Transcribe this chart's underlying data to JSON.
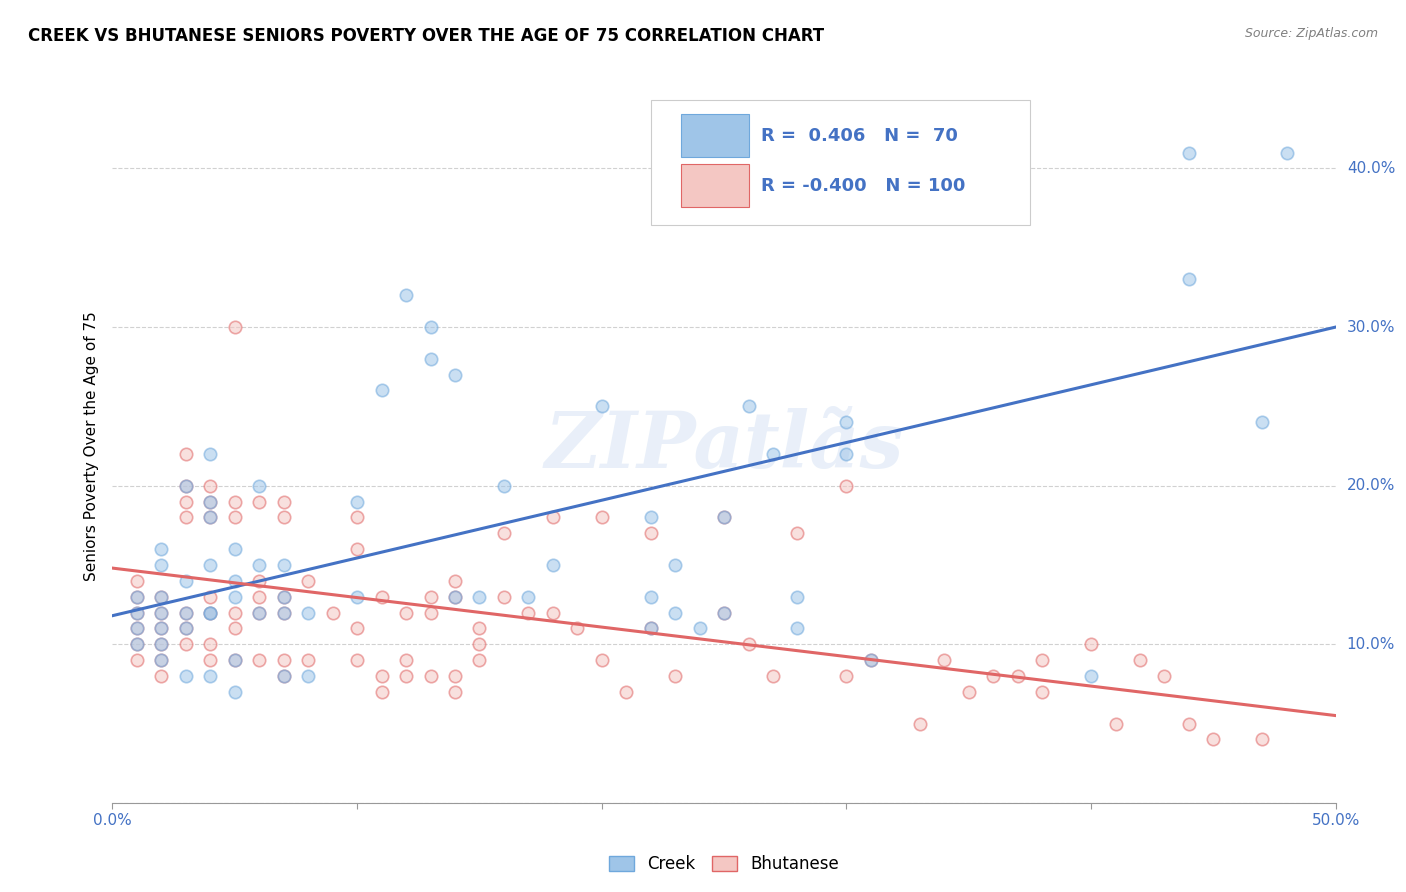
{
  "title": "CREEK VS BHUTANESE SENIORS POVERTY OVER THE AGE OF 75 CORRELATION CHART",
  "source": "Source: ZipAtlas.com",
  "ylabel": "Seniors Poverty Over the Age of 75",
  "xlim": [
    0.0,
    0.5
  ],
  "ylim": [
    0.0,
    0.45
  ],
  "xticks": [
    0.0,
    0.1,
    0.2,
    0.3,
    0.4,
    0.5
  ],
  "xticklabels": [
    "0.0%",
    "",
    "",
    "",
    "",
    "50.0%"
  ],
  "yticks": [
    0.0,
    0.1,
    0.2,
    0.3,
    0.4
  ],
  "yticklabels_right": [
    "",
    "10.0%",
    "20.0%",
    "30.0%",
    "40.0%"
  ],
  "creek_color": "#9fc5e8",
  "creek_edge_color": "#6fa8dc",
  "bhutanese_color": "#f4c7c3",
  "bhutanese_edge_color": "#e06666",
  "creek_line_color": "#4472c4",
  "bhutanese_line_color": "#e06666",
  "creek_R": 0.406,
  "creek_N": 70,
  "bhutanese_R": -0.4,
  "bhutanese_N": 100,
  "legend_text_color": "#4472c4",
  "watermark": "ZIPatlãs",
  "creek_scatter": [
    [
      0.01,
      0.12
    ],
    [
      0.01,
      0.13
    ],
    [
      0.01,
      0.11
    ],
    [
      0.01,
      0.1
    ],
    [
      0.02,
      0.13
    ],
    [
      0.02,
      0.12
    ],
    [
      0.02,
      0.11
    ],
    [
      0.02,
      0.1
    ],
    [
      0.02,
      0.09
    ],
    [
      0.02,
      0.15
    ],
    [
      0.02,
      0.16
    ],
    [
      0.03,
      0.14
    ],
    [
      0.03,
      0.12
    ],
    [
      0.03,
      0.08
    ],
    [
      0.03,
      0.11
    ],
    [
      0.03,
      0.2
    ],
    [
      0.04,
      0.22
    ],
    [
      0.04,
      0.19
    ],
    [
      0.04,
      0.12
    ],
    [
      0.04,
      0.18
    ],
    [
      0.04,
      0.15
    ],
    [
      0.04,
      0.12
    ],
    [
      0.04,
      0.08
    ],
    [
      0.05,
      0.14
    ],
    [
      0.05,
      0.16
    ],
    [
      0.05,
      0.13
    ],
    [
      0.05,
      0.09
    ],
    [
      0.05,
      0.07
    ],
    [
      0.06,
      0.2
    ],
    [
      0.06,
      0.15
    ],
    [
      0.06,
      0.12
    ],
    [
      0.07,
      0.12
    ],
    [
      0.07,
      0.15
    ],
    [
      0.07,
      0.13
    ],
    [
      0.07,
      0.08
    ],
    [
      0.08,
      0.12
    ],
    [
      0.08,
      0.08
    ],
    [
      0.1,
      0.19
    ],
    [
      0.1,
      0.13
    ],
    [
      0.11,
      0.26
    ],
    [
      0.12,
      0.32
    ],
    [
      0.13,
      0.3
    ],
    [
      0.13,
      0.28
    ],
    [
      0.14,
      0.27
    ],
    [
      0.14,
      0.13
    ],
    [
      0.15,
      0.13
    ],
    [
      0.16,
      0.2
    ],
    [
      0.17,
      0.13
    ],
    [
      0.18,
      0.15
    ],
    [
      0.2,
      0.25
    ],
    [
      0.22,
      0.18
    ],
    [
      0.22,
      0.13
    ],
    [
      0.22,
      0.11
    ],
    [
      0.23,
      0.15
    ],
    [
      0.23,
      0.12
    ],
    [
      0.24,
      0.11
    ],
    [
      0.25,
      0.18
    ],
    [
      0.25,
      0.12
    ],
    [
      0.26,
      0.25
    ],
    [
      0.27,
      0.22
    ],
    [
      0.28,
      0.13
    ],
    [
      0.28,
      0.11
    ],
    [
      0.3,
      0.24
    ],
    [
      0.3,
      0.22
    ],
    [
      0.31,
      0.09
    ],
    [
      0.4,
      0.08
    ],
    [
      0.44,
      0.41
    ],
    [
      0.44,
      0.33
    ],
    [
      0.47,
      0.24
    ],
    [
      0.48,
      0.41
    ]
  ],
  "bhutanese_scatter": [
    [
      0.01,
      0.14
    ],
    [
      0.01,
      0.13
    ],
    [
      0.01,
      0.12
    ],
    [
      0.01,
      0.11
    ],
    [
      0.01,
      0.1
    ],
    [
      0.01,
      0.09
    ],
    [
      0.02,
      0.13
    ],
    [
      0.02,
      0.12
    ],
    [
      0.02,
      0.11
    ],
    [
      0.02,
      0.1
    ],
    [
      0.02,
      0.09
    ],
    [
      0.02,
      0.08
    ],
    [
      0.03,
      0.22
    ],
    [
      0.03,
      0.2
    ],
    [
      0.03,
      0.19
    ],
    [
      0.03,
      0.18
    ],
    [
      0.03,
      0.12
    ],
    [
      0.03,
      0.11
    ],
    [
      0.03,
      0.1
    ],
    [
      0.04,
      0.2
    ],
    [
      0.04,
      0.19
    ],
    [
      0.04,
      0.18
    ],
    [
      0.04,
      0.13
    ],
    [
      0.04,
      0.12
    ],
    [
      0.04,
      0.1
    ],
    [
      0.04,
      0.09
    ],
    [
      0.05,
      0.3
    ],
    [
      0.05,
      0.19
    ],
    [
      0.05,
      0.18
    ],
    [
      0.05,
      0.12
    ],
    [
      0.05,
      0.11
    ],
    [
      0.05,
      0.09
    ],
    [
      0.06,
      0.19
    ],
    [
      0.06,
      0.14
    ],
    [
      0.06,
      0.13
    ],
    [
      0.06,
      0.12
    ],
    [
      0.06,
      0.09
    ],
    [
      0.07,
      0.19
    ],
    [
      0.07,
      0.18
    ],
    [
      0.07,
      0.13
    ],
    [
      0.07,
      0.12
    ],
    [
      0.07,
      0.09
    ],
    [
      0.07,
      0.08
    ],
    [
      0.08,
      0.14
    ],
    [
      0.08,
      0.09
    ],
    [
      0.09,
      0.12
    ],
    [
      0.1,
      0.18
    ],
    [
      0.1,
      0.16
    ],
    [
      0.1,
      0.11
    ],
    [
      0.1,
      0.09
    ],
    [
      0.11,
      0.13
    ],
    [
      0.11,
      0.08
    ],
    [
      0.11,
      0.07
    ],
    [
      0.12,
      0.12
    ],
    [
      0.12,
      0.09
    ],
    [
      0.12,
      0.08
    ],
    [
      0.13,
      0.13
    ],
    [
      0.13,
      0.12
    ],
    [
      0.13,
      0.08
    ],
    [
      0.14,
      0.14
    ],
    [
      0.14,
      0.13
    ],
    [
      0.14,
      0.08
    ],
    [
      0.14,
      0.07
    ],
    [
      0.15,
      0.11
    ],
    [
      0.15,
      0.1
    ],
    [
      0.15,
      0.09
    ],
    [
      0.16,
      0.17
    ],
    [
      0.16,
      0.13
    ],
    [
      0.17,
      0.12
    ],
    [
      0.18,
      0.18
    ],
    [
      0.18,
      0.12
    ],
    [
      0.19,
      0.11
    ],
    [
      0.2,
      0.18
    ],
    [
      0.2,
      0.09
    ],
    [
      0.21,
      0.07
    ],
    [
      0.22,
      0.17
    ],
    [
      0.22,
      0.11
    ],
    [
      0.23,
      0.08
    ],
    [
      0.25,
      0.18
    ],
    [
      0.25,
      0.12
    ],
    [
      0.26,
      0.1
    ],
    [
      0.27,
      0.08
    ],
    [
      0.28,
      0.17
    ],
    [
      0.3,
      0.2
    ],
    [
      0.3,
      0.08
    ],
    [
      0.31,
      0.09
    ],
    [
      0.33,
      0.05
    ],
    [
      0.34,
      0.09
    ],
    [
      0.35,
      0.07
    ],
    [
      0.36,
      0.08
    ],
    [
      0.37,
      0.08
    ],
    [
      0.38,
      0.09
    ],
    [
      0.38,
      0.07
    ],
    [
      0.4,
      0.1
    ],
    [
      0.41,
      0.05
    ],
    [
      0.42,
      0.09
    ],
    [
      0.43,
      0.08
    ],
    [
      0.44,
      0.05
    ],
    [
      0.45,
      0.04
    ],
    [
      0.47,
      0.04
    ]
  ],
  "creek_trendline": [
    [
      0.0,
      0.118
    ],
    [
      0.5,
      0.3
    ]
  ],
  "bhutanese_trendline": [
    [
      0.0,
      0.148
    ],
    [
      0.5,
      0.055
    ]
  ],
  "background_color": "#ffffff",
  "grid_color": "#cccccc",
  "title_fontsize": 12,
  "axis_label_fontsize": 11,
  "tick_fontsize": 11,
  "scatter_size": 80,
  "scatter_alpha": 0.55,
  "scatter_linewidth": 1.2
}
